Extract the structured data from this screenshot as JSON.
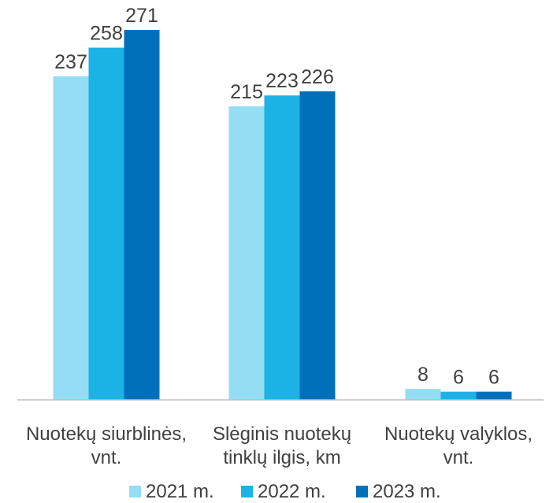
{
  "chart_data": {
    "type": "bar",
    "title": "",
    "xlabel": "",
    "ylabel": "",
    "categories": [
      [
        "Nuotekų siurblinės,",
        "vnt."
      ],
      [
        "Slėginis nuotekų",
        "tinklų ilgis, km"
      ],
      [
        "Nuotekų valyklos,",
        "vnt."
      ]
    ],
    "series": [
      {
        "name": "2021 m.",
        "color": "#93DDF5",
        "values": [
          237,
          215,
          8
        ]
      },
      {
        "name": "2022 m.",
        "color": "#1BB2E6",
        "values": [
          258,
          223,
          6
        ]
      },
      {
        "name": "2023 m.",
        "color": "#0070BA",
        "values": [
          271,
          226,
          6
        ]
      }
    ],
    "ylim": [
      0,
      271
    ],
    "grid": false,
    "legend": "bottom",
    "axis_color": "#BFBFBF"
  }
}
